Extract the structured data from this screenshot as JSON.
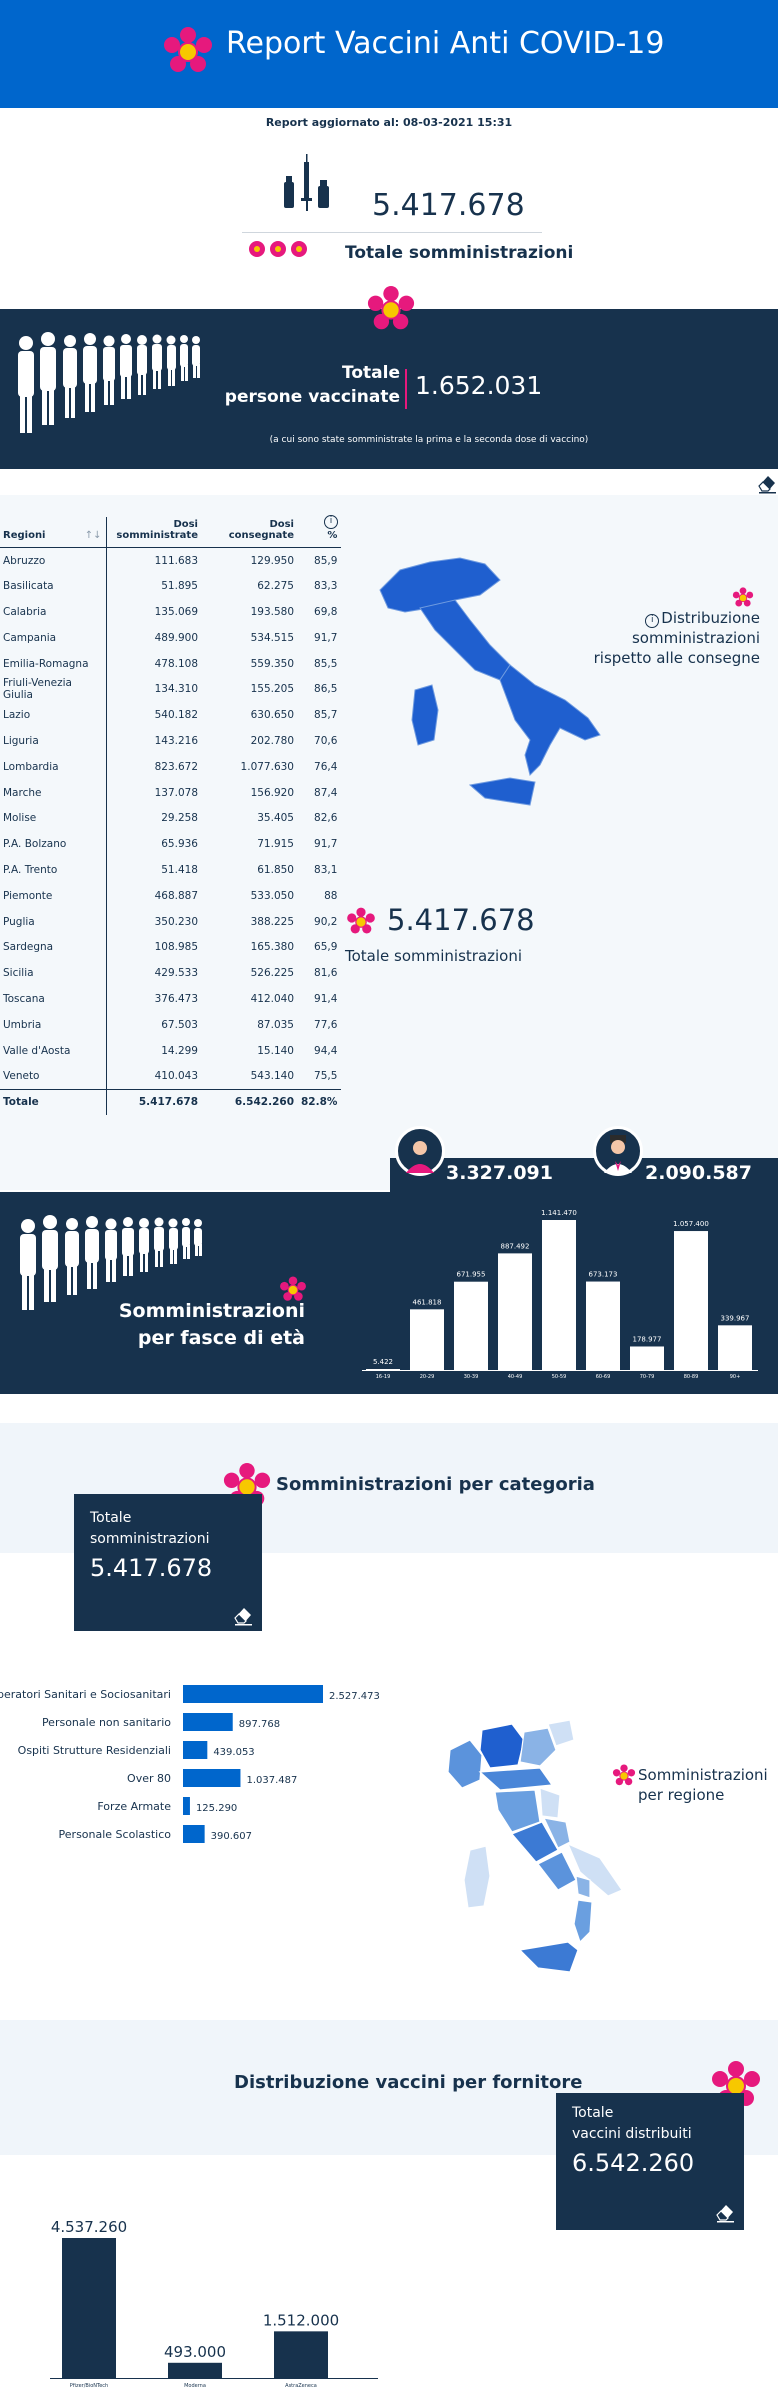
{
  "header": {
    "title": "Report Vaccini Anti COVID-19"
  },
  "update": {
    "text": "Report aggiornato al: 08-03-2021 15:31"
  },
  "totals": {
    "administrations": "5.417.678",
    "administrations_label": "Totale somministrazioni"
  },
  "vaccinated": {
    "label_line1": "Totale",
    "label_line2": "persone vaccinate",
    "value": "1.652.031",
    "note": "(a cui sono state somministrate la prima e la seconda dose di vaccino)"
  },
  "regions_table": {
    "headers": {
      "region": "Regioni",
      "administered_1": "Dosi",
      "administered_2": "somministrate",
      "delivered_1": "Dosi",
      "delivered_2": "consegnate",
      "pct": "%"
    },
    "sort_icon": "↑↓",
    "rows": [
      {
        "name": "Abruzzo",
        "administered": "111.683",
        "delivered": "129.950",
        "pct": "85,9"
      },
      {
        "name": "Basilicata",
        "administered": "51.895",
        "delivered": "62.275",
        "pct": "83,3"
      },
      {
        "name": "Calabria",
        "administered": "135.069",
        "delivered": "193.580",
        "pct": "69,8"
      },
      {
        "name": "Campania",
        "administered": "489.900",
        "delivered": "534.515",
        "pct": "91,7"
      },
      {
        "name": "Emilia-Romagna",
        "administered": "478.108",
        "delivered": "559.350",
        "pct": "85,5"
      },
      {
        "name": "Friuli-Venezia Giulia",
        "administered": "134.310",
        "delivered": "155.205",
        "pct": "86,5"
      },
      {
        "name": "Lazio",
        "administered": "540.182",
        "delivered": "630.650",
        "pct": "85,7"
      },
      {
        "name": "Liguria",
        "administered": "143.216",
        "delivered": "202.780",
        "pct": "70,6"
      },
      {
        "name": "Lombardia",
        "administered": "823.672",
        "delivered": "1.077.630",
        "pct": "76,4"
      },
      {
        "name": "Marche",
        "administered": "137.078",
        "delivered": "156.920",
        "pct": "87,4"
      },
      {
        "name": "Molise",
        "administered": "29.258",
        "delivered": "35.405",
        "pct": "82,6"
      },
      {
        "name": "P.A. Bolzano",
        "administered": "65.936",
        "delivered": "71.915",
        "pct": "91,7"
      },
      {
        "name": "P.A. Trento",
        "administered": "51.418",
        "delivered": "61.850",
        "pct": "83,1"
      },
      {
        "name": "Piemonte",
        "administered": "468.887",
        "delivered": "533.050",
        "pct": "88"
      },
      {
        "name": "Puglia",
        "administered": "350.230",
        "delivered": "388.225",
        "pct": "90,2"
      },
      {
        "name": "Sardegna",
        "administered": "108.985",
        "delivered": "165.380",
        "pct": "65,9"
      },
      {
        "name": "Sicilia",
        "administered": "429.533",
        "delivered": "526.225",
        "pct": "81,6"
      },
      {
        "name": "Toscana",
        "administered": "376.473",
        "delivered": "412.040",
        "pct": "91,4"
      },
      {
        "name": "Umbria",
        "administered": "67.503",
        "delivered": "87.035",
        "pct": "77,6"
      },
      {
        "name": "Valle d'Aosta",
        "administered": "14.299",
        "delivered": "15.140",
        "pct": "94,4"
      },
      {
        "name": "Veneto",
        "administered": "410.043",
        "delivered": "543.140",
        "pct": "75,5"
      }
    ],
    "total": {
      "name": "Totale",
      "administered": "5.417.678",
      "delivered": "6.542.260",
      "pct": "82.8%"
    }
  },
  "distribution_map": {
    "label_line1": "Distribuzione somministrazioni",
    "label_line2": "rispetto alle consegne"
  },
  "totals2": {
    "value": "5.417.678",
    "label": "Totale somministrazioni"
  },
  "gender": {
    "women": "3.327.091",
    "men": "2.090.587"
  },
  "age_section": {
    "label_line1": "Somministrazioni",
    "label_line2": "per fasce di età"
  },
  "category_section": {
    "title": "Somministrazioni per categoria",
    "box_label_line1": "Totale",
    "box_label_line2": "somministrazioni",
    "box_value": "5.417.678"
  },
  "region_map": {
    "label_line1": "Somministrazioni",
    "label_line2": "per regione"
  },
  "supplier_section": {
    "title": "Distribuzione vaccini per fornitore",
    "box_label_line1": "Totale",
    "box_label_line2": "vaccini distribuiti",
    "box_value": "6.542.260"
  },
  "colors": {
    "primary": "#0066cc",
    "navy": "#17324d",
    "magenta": "#e6197d",
    "yellow": "#f7c800"
  },
  "chart_data": [
    {
      "type": "bar",
      "categories": [
        "16-19",
        "20-29",
        "30-39",
        "40-49",
        "50-59",
        "60-69",
        "70-79",
        "80-89",
        "90+"
      ],
      "values": [
        5422,
        461818,
        671955,
        887492,
        1141470,
        673173,
        178977,
        1057400,
        339967
      ],
      "value_labels": [
        "5.422",
        "461.818",
        "671.955",
        "887.492",
        "1.141.470",
        "673.173",
        "178.977",
        "1.057.400",
        "339.967"
      ]
    },
    {
      "type": "bar",
      "orientation": "horizontal",
      "categories": [
        "Operatori Sanitari e Sociosanitari",
        "Personale non sanitario",
        "Ospiti Strutture Residenziali",
        "Over 80",
        "Forze Armate",
        "Personale Scolastico"
      ],
      "values": [
        2527473,
        897768,
        439053,
        1037487,
        125290,
        390607
      ],
      "value_labels": [
        "2.527.473",
        "897.768",
        "439.053",
        "1.037.487",
        "125.290",
        "390.607"
      ]
    },
    {
      "type": "bar",
      "categories": [
        "Pfizer/BioNTech",
        "Moderna",
        "AstraZeneca"
      ],
      "values": [
        4537260,
        493000,
        1512000
      ],
      "value_labels": [
        "4.537.260",
        "493.000",
        "1.512.000"
      ]
    }
  ]
}
